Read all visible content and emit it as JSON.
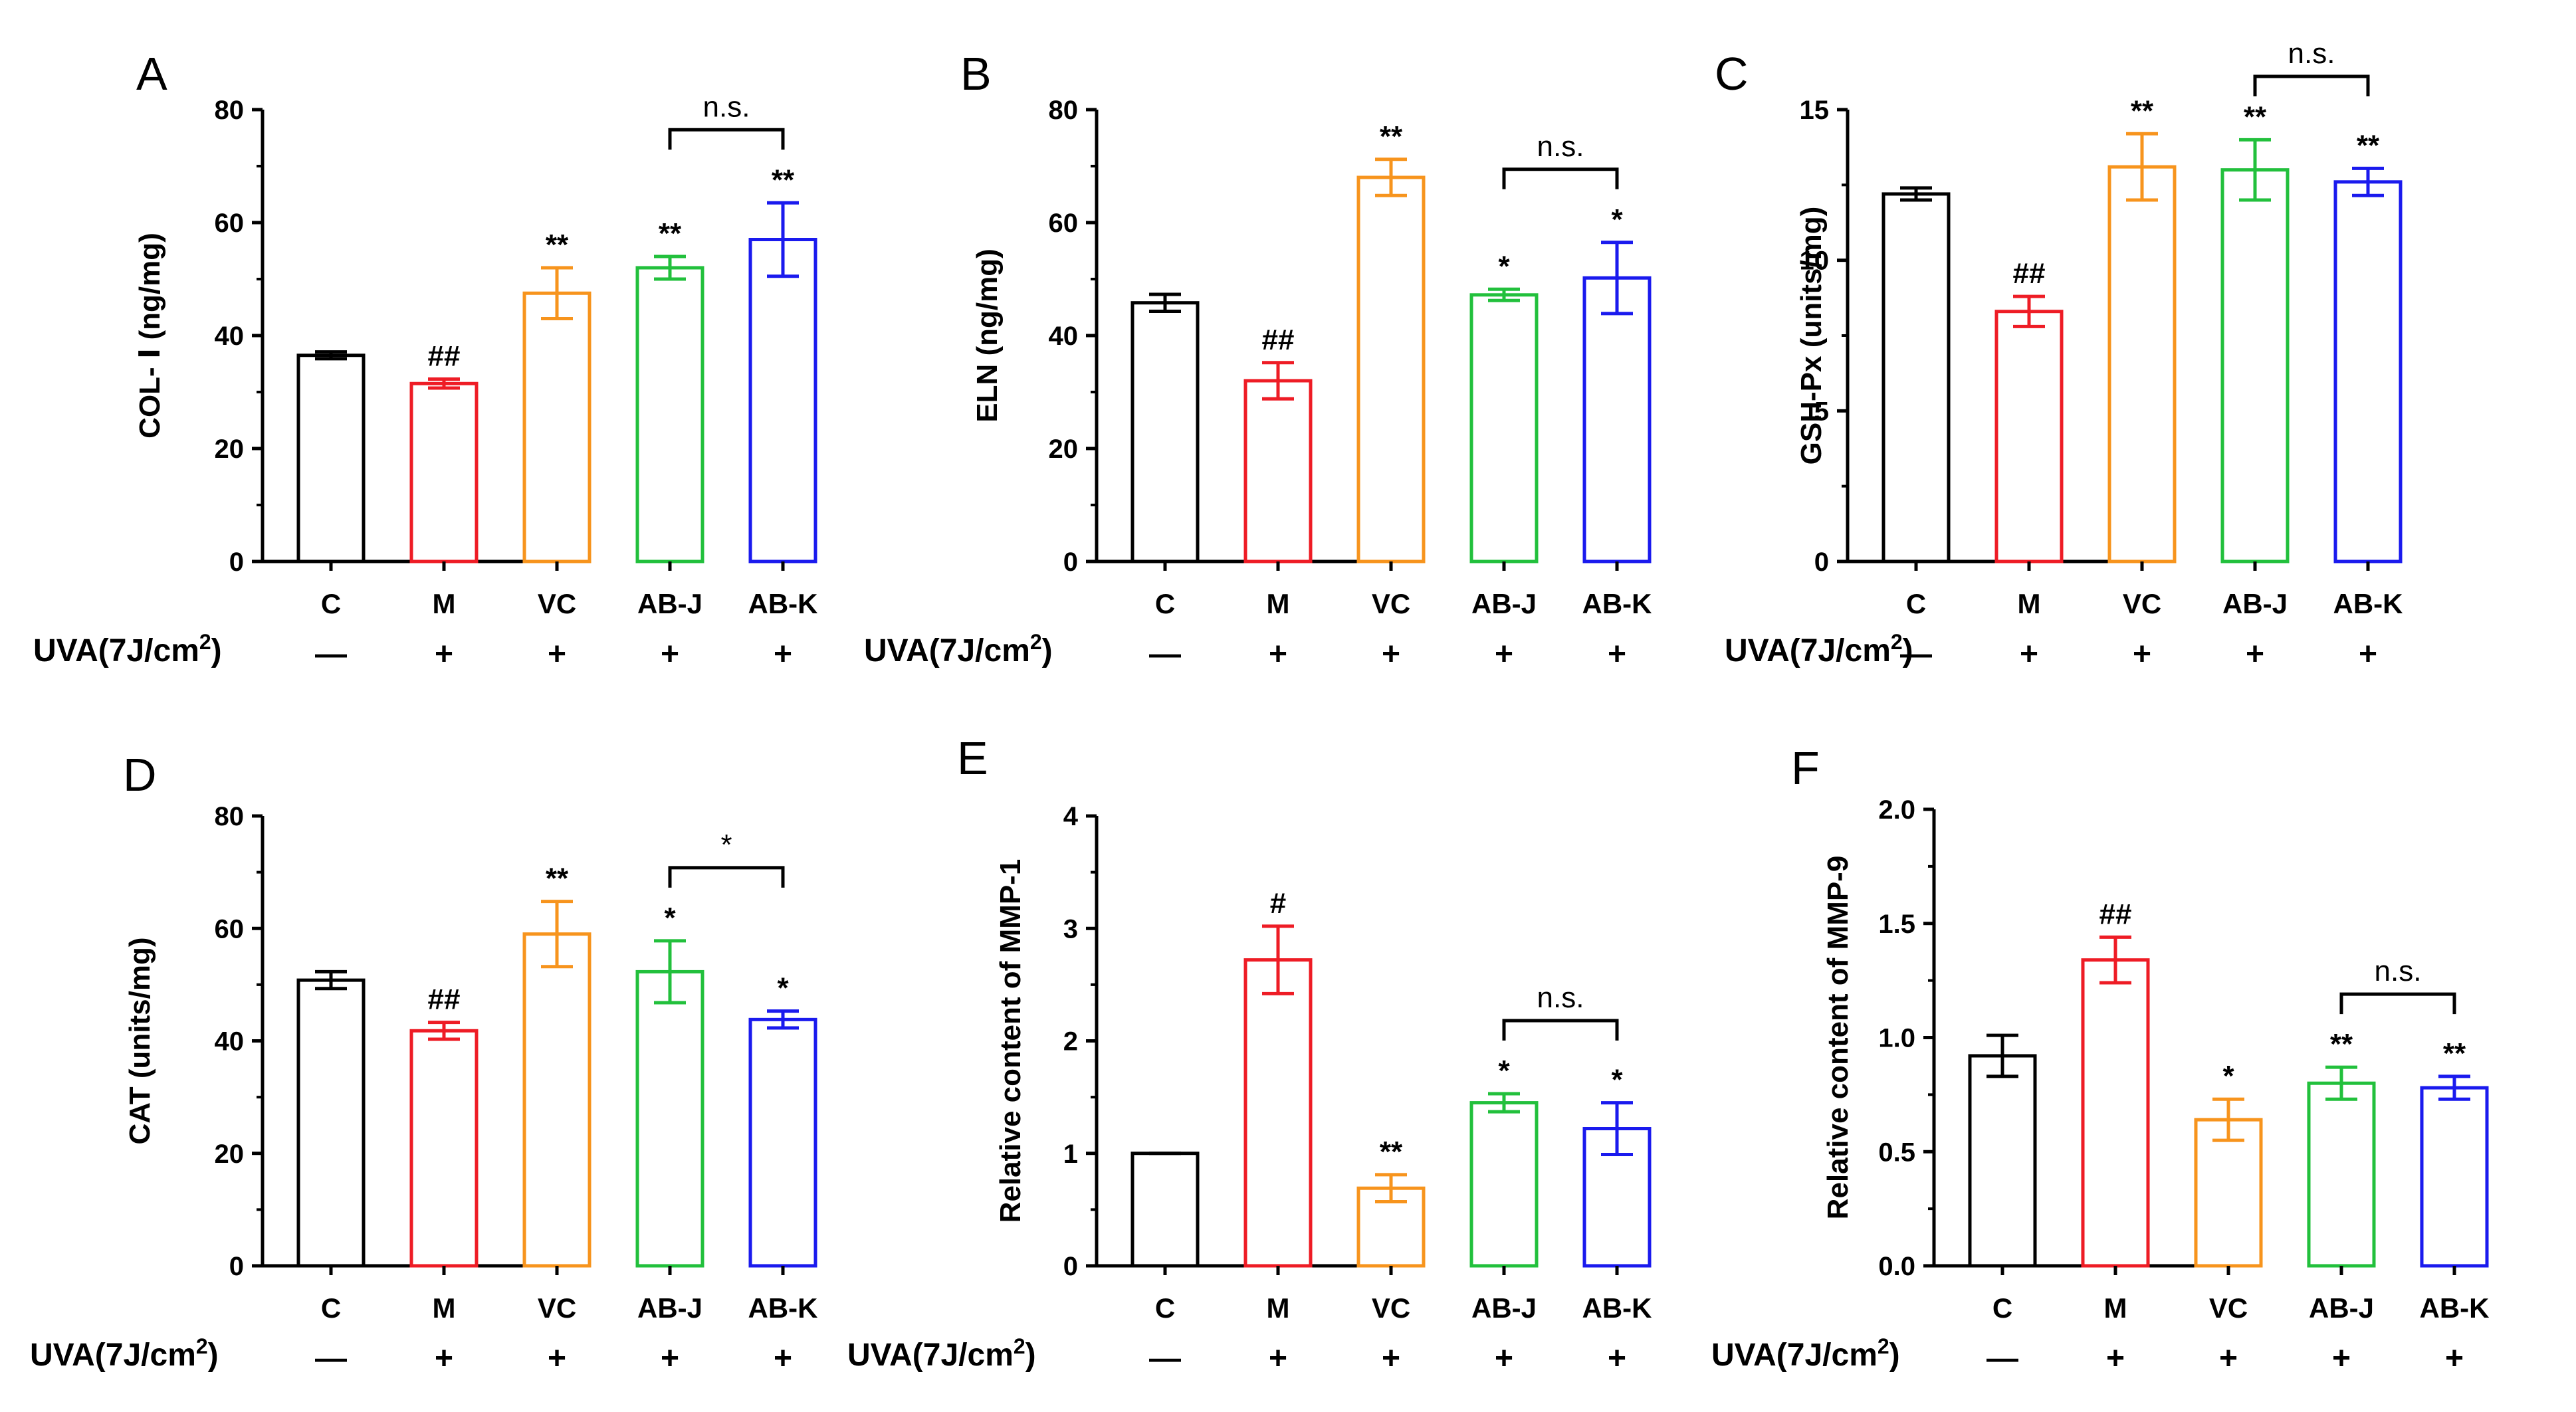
{
  "figure": {
    "uva_label": "UVA(7J/cm",
    "uva_sup": "2",
    "uva_close": ")",
    "minus_symbol": "—",
    "plus_symbol": "+",
    "treatment_signs": [
      "—",
      "+",
      "+",
      "+",
      "+"
    ],
    "bar_colors": [
      "#000000",
      "#ee1c25",
      "#f7941d",
      "#22c03c",
      "#1a1aee"
    ]
  },
  "chart_data": [
    {
      "type": "bar",
      "panel": "A",
      "categories": [
        "C",
        "M",
        "VC",
        "AB-J",
        "AB-K"
      ],
      "values": [
        36.5,
        31.5,
        47.5,
        52.0,
        57.0
      ],
      "errors": [
        0.6,
        0.8,
        4.5,
        2.0,
        6.5
      ],
      "annotations": [
        "",
        "##",
        "**",
        "**",
        "**"
      ],
      "ylabel": "COL- Ⅰ (ng/mg)",
      "ylim": [
        0,
        80
      ],
      "yticks": [
        0,
        20,
        40,
        60,
        80
      ],
      "tick_labels": [
        "0",
        "20",
        "40",
        "60",
        "80"
      ],
      "bracket": {
        "from": 3,
        "to": 4,
        "label": "n.s."
      }
    },
    {
      "type": "bar",
      "panel": "B",
      "categories": [
        "C",
        "M",
        "VC",
        "AB-J",
        "AB-K"
      ],
      "values": [
        45.8,
        32.0,
        68.0,
        47.2,
        50.2
      ],
      "errors": [
        1.5,
        3.2,
        3.2,
        1.0,
        6.3
      ],
      "annotations": [
        "",
        "##",
        "**",
        "*",
        "*"
      ],
      "ylabel": "ELN (ng/mg)",
      "ylim": [
        0,
        80
      ],
      "yticks": [
        0,
        20,
        40,
        60,
        80
      ],
      "tick_labels": [
        "0",
        "20",
        "40",
        "60",
        "80"
      ],
      "bracket": {
        "from": 3,
        "to": 4,
        "label": "n.s."
      }
    },
    {
      "type": "bar",
      "panel": "C",
      "categories": [
        "C",
        "M",
        "VC",
        "AB-J",
        "AB-K"
      ],
      "values": [
        12.2,
        8.3,
        13.1,
        13.0,
        12.6
      ],
      "errors": [
        0.2,
        0.5,
        1.1,
        1.0,
        0.45
      ],
      "annotations": [
        "",
        "##",
        "**",
        "**",
        "**"
      ],
      "ylabel": "GSH-Px (units/mg)",
      "ylim": [
        0,
        15
      ],
      "yticks": [
        0,
        5,
        10,
        15
      ],
      "tick_labels": [
        "0",
        "5",
        "10",
        "15"
      ],
      "bracket": {
        "from": 3,
        "to": 4,
        "label": "n.s."
      }
    },
    {
      "type": "bar",
      "panel": "D",
      "categories": [
        "C",
        "M",
        "VC",
        "AB-J",
        "AB-K"
      ],
      "values": [
        50.8,
        41.8,
        59.0,
        52.3,
        43.8
      ],
      "errors": [
        1.5,
        1.5,
        5.8,
        5.5,
        1.5
      ],
      "annotations": [
        "",
        "##",
        "**",
        "*",
        "*"
      ],
      "ylabel": "CAT (units/mg)",
      "ylim": [
        0,
        80
      ],
      "yticks": [
        0,
        20,
        40,
        60,
        80
      ],
      "tick_labels": [
        "0",
        "20",
        "40",
        "60",
        "80"
      ],
      "bracket": {
        "from": 3,
        "to": 4,
        "label": "*"
      }
    },
    {
      "type": "bar",
      "panel": "E",
      "categories": [
        "C",
        "M",
        "VC",
        "AB-J",
        "AB-K"
      ],
      "values": [
        1.0,
        2.72,
        0.69,
        1.45,
        1.22
      ],
      "errors": [
        0.0,
        0.3,
        0.12,
        0.08,
        0.23
      ],
      "annotations": [
        "",
        "#",
        "**",
        "*",
        "*"
      ],
      "ylabel": "Relative content of MMP-1",
      "ylim": [
        0,
        4
      ],
      "yticks": [
        0,
        1,
        2,
        3,
        4
      ],
      "tick_labels": [
        "0",
        "1",
        "2",
        "3",
        "4"
      ],
      "bracket": {
        "from": 3,
        "to": 4,
        "label": "n.s."
      }
    },
    {
      "type": "bar",
      "panel": "F",
      "categories": [
        "C",
        "M",
        "VC",
        "AB-J",
        "AB-K"
      ],
      "values": [
        0.92,
        1.34,
        0.64,
        0.8,
        0.78
      ],
      "errors": [
        0.09,
        0.1,
        0.09,
        0.07,
        0.05
      ],
      "annotations": [
        "",
        "##",
        "*",
        "**",
        "**"
      ],
      "ylabel": "Relative content of MMP-9",
      "ylim": [
        0,
        2
      ],
      "yticks": [
        0,
        0.5,
        1,
        1.5,
        2
      ],
      "tick_labels": [
        "0.0",
        "0.5",
        "1.0",
        "1.5",
        "2.0"
      ],
      "bracket": {
        "from": 3,
        "to": 4,
        "label": "n.s."
      }
    }
  ]
}
